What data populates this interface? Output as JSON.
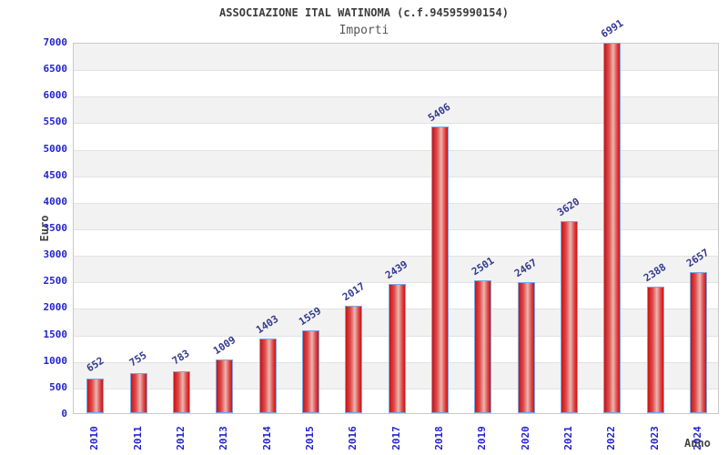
{
  "header": {
    "title": "ASSOCIAZIONE ITAL WATINOMA (c.f.94595990154)",
    "subtitle": "Importi"
  },
  "chart_data": {
    "type": "bar",
    "title": "ASSOCIAZIONE ITAL WATINOMA (c.f.94595990154)",
    "subtitle": "Importi",
    "categories": [
      "2010",
      "2011",
      "2012",
      "2013",
      "2014",
      "2015",
      "2016",
      "2017",
      "2018",
      "2019",
      "2020",
      "2021",
      "2022",
      "2023",
      "2024"
    ],
    "values": [
      652,
      755,
      783,
      1009,
      1403,
      1559,
      2017,
      2439,
      5406,
      2501,
      2467,
      3620,
      6991,
      2388,
      2657
    ],
    "xlabel": "Anno",
    "ylabel": "Euro",
    "ylim": [
      0,
      7000
    ],
    "ytick_step": 500,
    "ytick_labels": [
      "0",
      "500",
      "1000",
      "1500",
      "2000",
      "2500",
      "3000",
      "3500",
      "4000",
      "4500",
      "5000",
      "5500",
      "6000",
      "6500",
      "7000"
    ],
    "grid": "alternating-horizontal-bands",
    "legend_position": "none",
    "value_labels_shown": true,
    "colors": {
      "bar_border": "#7da7e0",
      "bar_fill_dark": "#ce1212",
      "bar_fill_light": "#ecb6b0",
      "axis_tick_text": "#2424cc",
      "value_label_text": "#333a8f",
      "band_gray": "#f2f2f2",
      "plot_border": "#c9c9c9",
      "title_text": "#3c3c3c",
      "axis_title_text": "#444444"
    }
  }
}
